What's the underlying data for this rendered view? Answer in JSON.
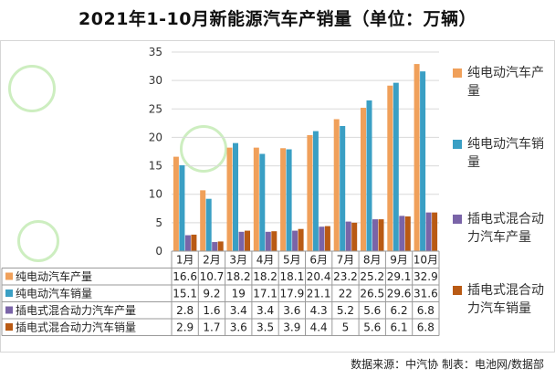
{
  "title": "2021年1-10月新能源汽车产销量（单位：万辆）",
  "source_text": "数据来源：中汽协  制表：电池网/数据部",
  "colors": {
    "bev_production": "#f0a05a",
    "bev_sales": "#3a9fc4",
    "phev_production": "#7a64a8",
    "phev_sales": "#b95a14",
    "grid": "#d9d9d9",
    "watermark": "#bfe3a8"
  },
  "chart_data": {
    "type": "bar",
    "categories": [
      "1月",
      "2月",
      "3月",
      "4月",
      "5月",
      "6月",
      "7月",
      "8月",
      "9月",
      "10月"
    ],
    "series": [
      {
        "name": "纯电动汽车产量",
        "values": [
          16.6,
          10.7,
          18.2,
          18.2,
          18.1,
          20.4,
          23.2,
          25.2,
          29.1,
          32.9
        ]
      },
      {
        "name": "纯电动汽车销量",
        "values": [
          15.1,
          9.2,
          19,
          17.1,
          17.9,
          21.1,
          22,
          26.5,
          29.6,
          31.6
        ]
      },
      {
        "name": "插电式混合动力汽车产量",
        "values": [
          2.8,
          1.6,
          3.4,
          3.4,
          3.6,
          4.3,
          5.2,
          5.6,
          6.2,
          6.8
        ]
      },
      {
        "name": "插电式混合动力汽车销量",
        "values": [
          2.9,
          1.7,
          3.6,
          3.5,
          3.9,
          4.4,
          5,
          5.6,
          6.1,
          6.8
        ]
      }
    ],
    "ylim": [
      0,
      35
    ],
    "yticks": [
      0,
      5,
      10,
      15,
      20,
      25,
      30,
      35
    ],
    "grid": true,
    "legend_position": "right",
    "data_table": true
  }
}
